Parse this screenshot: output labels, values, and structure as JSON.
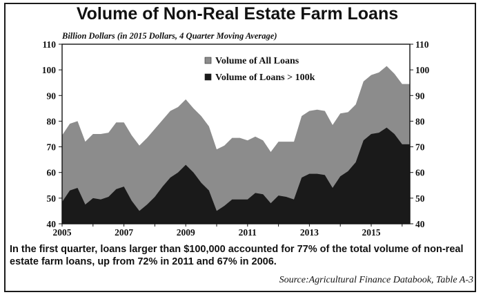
{
  "title": "Volume of Non-Real Estate Farm Loans",
  "subtitle": "Billion Dollars (in 2015 Dollars, 4 Quarter Moving Average)",
  "note": "In the first quarter, loans larger than $100,000 accounted for 77% of the total volume of non-real estate farm loans, up from 72% in 2011 and 67% in 2006.",
  "source": "Source:Agricultural Finance Databook, Table A-3",
  "chart_data": {
    "type": "area",
    "title": "Volume of Non-Real Estate Farm Loans",
    "ylabel": "Billion Dollars (in 2015 Dollars, 4 Quarter Moving Average)",
    "xlim": [
      2005,
      2016.25
    ],
    "ylim": [
      40,
      110
    ],
    "x_ticks": [
      2005,
      2007,
      2009,
      2011,
      2013,
      2015
    ],
    "y_ticks": [
      40,
      50,
      60,
      70,
      80,
      90,
      100,
      110
    ],
    "grid": false,
    "legend_position": "top-center",
    "x": [
      2005,
      2005.25,
      2005.5,
      2005.75,
      2006,
      2006.25,
      2006.5,
      2006.75,
      2007,
      2007.25,
      2007.5,
      2007.75,
      2008,
      2008.25,
      2008.5,
      2008.75,
      2009,
      2009.25,
      2009.5,
      2009.75,
      2010,
      2010.25,
      2010.5,
      2010.75,
      2011,
      2011.25,
      2011.5,
      2011.75,
      2012,
      2012.25,
      2012.5,
      2012.75,
      2013,
      2013.25,
      2013.5,
      2013.75,
      2014,
      2014.25,
      2014.5,
      2014.75,
      2015,
      2015.25,
      2015.5,
      2015.75,
      2016,
      2016.25
    ],
    "series": [
      {
        "name": "Volume of All Loans",
        "color": "#8c8c8c",
        "values": [
          74.5,
          79,
          80,
          72,
          75,
          75,
          75.5,
          79.5,
          79.5,
          74.5,
          70.5,
          73.5,
          77,
          80.5,
          84,
          85.5,
          88.5,
          85,
          82,
          78,
          69,
          70.5,
          73.5,
          73.5,
          72.5,
          74,
          72.5,
          68,
          72,
          72,
          72,
          82,
          84,
          84.5,
          84,
          78.5,
          83,
          83.5,
          86.5,
          95.5,
          98,
          99,
          101.5,
          98.5,
          94.5,
          94.5
        ]
      },
      {
        "name": "Volume of Loans > 100k",
        "color": "#1a1a1a",
        "values": [
          48.5,
          53,
          54,
          47.5,
          50,
          49.5,
          50.5,
          53.5,
          54.5,
          49,
          45,
          47.5,
          50.5,
          54.5,
          58,
          60,
          63,
          60,
          56,
          53,
          45,
          47,
          49.5,
          49.5,
          49.5,
          52,
          51.5,
          48,
          51,
          50.5,
          49.5,
          58,
          59.5,
          59.5,
          59,
          54,
          58.5,
          60.5,
          64,
          72.5,
          75,
          75.5,
          77.5,
          75,
          71,
          71
        ]
      }
    ]
  }
}
